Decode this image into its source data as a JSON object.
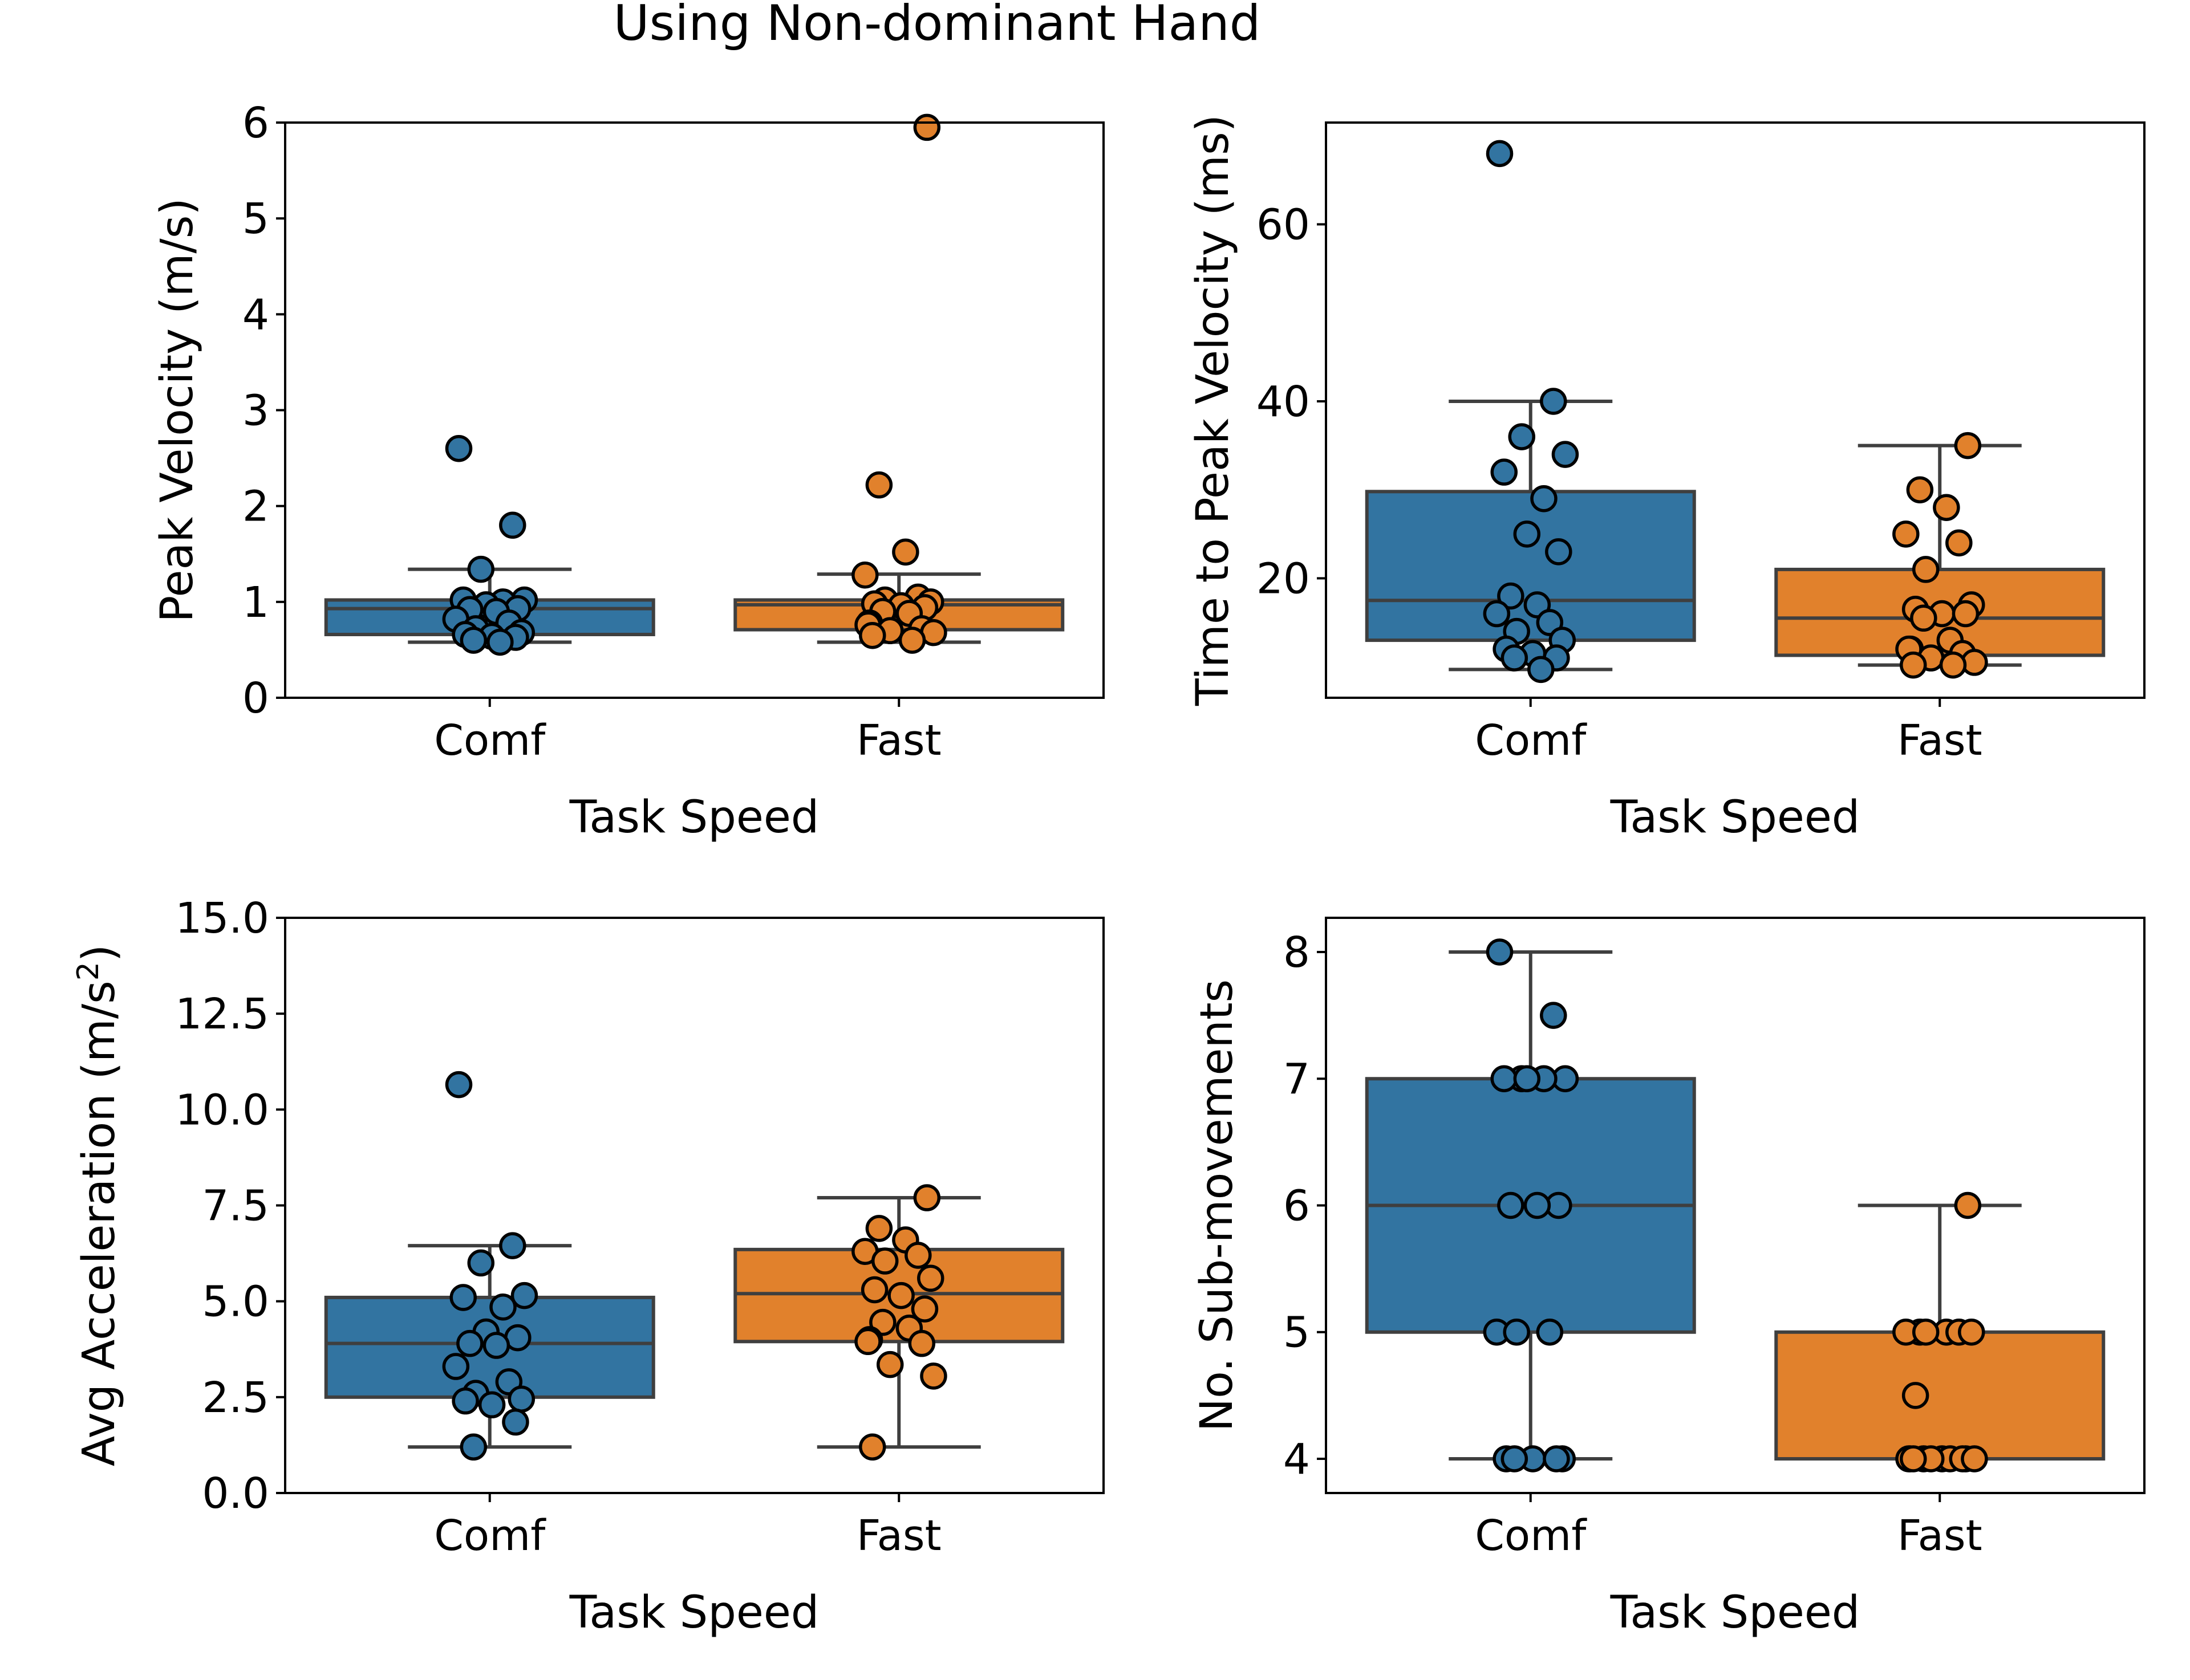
{
  "title": "Using Non-dominant Hand",
  "colors": {
    "Comf": "#3274a1",
    "Fast": "#e1812c",
    "edge": "#3f3f3f"
  },
  "chart_data": [
    {
      "id": "peak-velocity",
      "type": "box",
      "xlabel": "Task Speed",
      "ylabel": "Peak Velocity (m/s)",
      "ylim": [
        0,
        6
      ],
      "yticks": [
        0,
        1,
        2,
        3,
        4,
        5,
        6
      ],
      "ytick_labels": [
        "0",
        "1",
        "2",
        "3",
        "4",
        "5",
        "6"
      ],
      "categories": [
        "Comf",
        "Fast"
      ],
      "boxes": [
        {
          "q1": 0.66,
          "median": 0.93,
          "q3": 1.02,
          "whisker_low": 0.58,
          "whisker_high": 1.34
        },
        {
          "q1": 0.71,
          "median": 0.97,
          "q3": 1.02,
          "whisker_low": 0.58,
          "whisker_high": 1.29
        }
      ],
      "points": [
        [
          2.6,
          1.8,
          1.34,
          1.02,
          1.02,
          1.0,
          0.97,
          0.93,
          0.92,
          0.9,
          0.82,
          0.78,
          0.72,
          0.68,
          0.66,
          0.64,
          0.63,
          0.6,
          0.58
        ],
        [
          5.95,
          2.22,
          1.52,
          1.28,
          1.05,
          1.02,
          1.0,
          0.98,
          0.96,
          0.94,
          0.9,
          0.88,
          0.78,
          0.76,
          0.72,
          0.7,
          0.68,
          0.65,
          0.6
        ]
      ]
    },
    {
      "id": "time-to-peak-velocity",
      "type": "box",
      "xlabel": "Task Speed",
      "ylabel": "Time to Peak Velocity (ms)",
      "ylim": [
        6.5,
        71.5
      ],
      "yticks": [
        20,
        40,
        60
      ],
      "ytick_labels": [
        "20",
        "40",
        "60"
      ],
      "categories": [
        "Comf",
        "Fast"
      ],
      "boxes": [
        {
          "q1": 13,
          "median": 17.5,
          "q3": 29.8,
          "whisker_low": 9.7,
          "whisker_high": 40
        },
        {
          "q1": 11.3,
          "median": 15.5,
          "q3": 21,
          "whisker_low": 10.2,
          "whisker_high": 35
        }
      ],
      "points": [
        [
          68,
          40,
          36,
          34,
          32,
          29,
          25,
          23,
          18,
          17,
          16,
          15,
          14,
          13,
          12,
          11.5,
          11,
          11,
          9.7
        ],
        [
          35,
          30,
          28,
          25,
          24,
          21,
          17,
          16.5,
          16,
          16,
          15.5,
          13,
          12,
          12,
          11.5,
          11,
          10.5,
          10.2,
          10.2
        ]
      ]
    },
    {
      "id": "avg-acceleration",
      "type": "box",
      "xlabel": "Task Speed",
      "ylabel": "Avg Acceleration (m/s²)",
      "ylim": [
        0,
        15
      ],
      "yticks": [
        0,
        2.5,
        5,
        7.5,
        10,
        12.5,
        15
      ],
      "ytick_labels": [
        "0.0",
        "2.5",
        "5.0",
        "7.5",
        "10.0",
        "12.5",
        "15.0"
      ],
      "categories": [
        "Comf",
        "Fast"
      ],
      "boxes": [
        {
          "q1": 2.5,
          "median": 3.9,
          "q3": 5.1,
          "whisker_low": 1.2,
          "whisker_high": 6.45
        },
        {
          "q1": 3.95,
          "median": 5.2,
          "q3": 6.35,
          "whisker_low": 1.2,
          "whisker_high": 7.7
        }
      ],
      "points": [
        [
          10.65,
          6.45,
          6.0,
          5.15,
          5.1,
          4.85,
          4.2,
          4.05,
          3.9,
          3.85,
          3.3,
          2.9,
          2.6,
          2.45,
          2.4,
          2.3,
          1.85,
          1.2
        ],
        [
          7.7,
          6.9,
          6.6,
          6.3,
          6.2,
          6.05,
          5.6,
          5.3,
          5.15,
          4.8,
          4.45,
          4.3,
          4.0,
          3.95,
          3.9,
          3.35,
          3.05,
          1.2
        ]
      ]
    },
    {
      "id": "sub-movements",
      "type": "box",
      "xlabel": "Task Speed",
      "ylabel": "No. Sub-movements",
      "ylim": [
        3.73,
        8.27
      ],
      "yticks": [
        4,
        5,
        6,
        7,
        8
      ],
      "ytick_labels": [
        "4",
        "5",
        "6",
        "7",
        "8"
      ],
      "categories": [
        "Comf",
        "Fast"
      ],
      "boxes": [
        {
          "q1": 5,
          "median": 6,
          "q3": 7,
          "whisker_low": 4,
          "whisker_high": 8
        },
        {
          "q1": 4,
          "median": 4,
          "q3": 5,
          "whisker_low": 4,
          "whisker_high": 6
        }
      ],
      "points": [
        [
          8,
          7.5,
          7,
          7,
          7,
          7,
          7,
          6,
          6,
          6,
          5,
          5,
          5,
          4,
          4,
          4,
          4,
          4
        ],
        [
          6,
          5,
          5,
          5,
          5,
          5,
          5,
          4.5,
          4,
          4,
          4,
          4,
          4,
          4,
          4,
          4,
          4,
          4
        ]
      ]
    }
  ]
}
